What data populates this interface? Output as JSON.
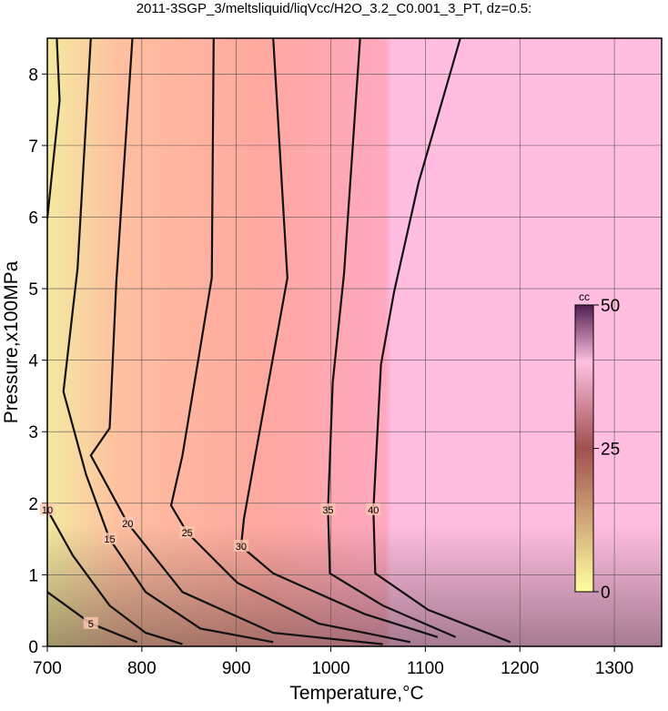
{
  "chart_data": {
    "type": "contour",
    "title": "2011-3SGP_3/meltsliquid/liqVcc/H2O_3.2_C0.001_3_PT, dz=0.5:",
    "xlabel": "Temperature,°C",
    "ylabel": "Pressure,x100MPa",
    "xlim": [
      700,
      1350
    ],
    "xticks": [
      700,
      800,
      900,
      1000,
      1100,
      1200,
      1300
    ],
    "ylim": [
      0,
      8.5
    ],
    "yticks": [
      0,
      1,
      2,
      3,
      4,
      5,
      6,
      7,
      8
    ],
    "grid": true,
    "colorbar": {
      "label": "cc",
      "lim": [
        0,
        50
      ],
      "ticks": [
        0,
        25,
        50
      ]
    },
    "series": [
      {
        "level": 5,
        "x": [
          700,
          746,
          795
        ],
        "y": [
          0.76,
          0.32,
          0.06
        ]
      },
      {
        "level": 10,
        "x": [
          710,
          713,
          706,
          700,
          null,
          700,
          727,
          766,
          804,
          843
        ],
        "y": [
          8.5,
          7.63,
          6.74,
          5.98,
          null,
          1.91,
          1.27,
          0.57,
          0.19,
          0.03
        ]
      },
      {
        "level": 15,
        "x": [
          746,
          732,
          717,
          741,
          766,
          804,
          862,
          939
        ],
        "y": [
          8.5,
          5.28,
          3.56,
          2.4,
          1.5,
          0.76,
          0.25,
          0.06
        ]
      },
      {
        "level": 20,
        "x": [
          790,
          773,
          766,
          746,
          785,
          843,
          939,
          1055
        ],
        "y": [
          8.5,
          5.09,
          3.05,
          2.67,
          1.72,
          0.76,
          0.19,
          0.03
        ]
      },
      {
        "level": 25,
        "x": [
          876,
          874,
          843,
          831,
          848,
          901,
          987,
          1084
        ],
        "y": [
          8.5,
          5.15,
          2.67,
          1.97,
          1.59,
          0.89,
          0.32,
          0.06
        ]
      },
      {
        "level": 30,
        "x": [
          939,
          954,
          920,
          908,
          905,
          939,
          1036,
          1113
        ],
        "y": [
          8.5,
          5.15,
          2.67,
          1.78,
          1.4,
          1.02,
          0.45,
          0.13
        ]
      },
      {
        "level": 35,
        "x": [
          1031,
          1014,
          1002,
          997,
          999,
          1055,
          1132
        ],
        "y": [
          8.5,
          5.22,
          3.69,
          1.91,
          1.02,
          0.57,
          0.13
        ]
      },
      {
        "level": 40,
        "x": [
          1137,
          1093,
          1067,
          1053,
          1045,
          1047,
          1103,
          1190
        ],
        "y": [
          8.5,
          6.49,
          4.96,
          3.94,
          1.91,
          1.02,
          0.51,
          0.06
        ]
      }
    ]
  }
}
